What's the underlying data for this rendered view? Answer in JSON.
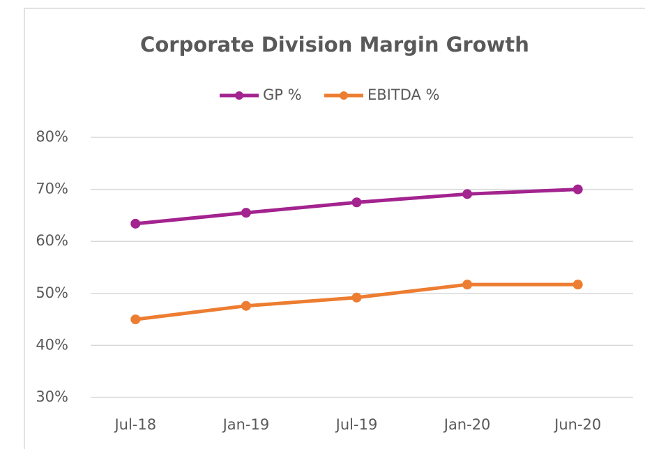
{
  "chart_data": {
    "type": "line",
    "title": "Corporate Division Margin Growth",
    "categories": [
      "Jul-18",
      "Jan-19",
      "Jul-19",
      "Jan-20",
      "Jun-20"
    ],
    "series": [
      {
        "name": "GP %",
        "color": "#a3238f",
        "values": [
          63.4,
          65.5,
          67.5,
          69.1,
          70.0
        ]
      },
      {
        "name": "EBITDA %",
        "color": "#ed7d31",
        "values": [
          45.0,
          47.6,
          49.2,
          51.7,
          51.7
        ]
      }
    ],
    "ylim": [
      30,
      80
    ],
    "yticks": [
      {
        "value": 30,
        "label": "30%"
      },
      {
        "value": 40,
        "label": "40%"
      },
      {
        "value": 50,
        "label": "50%"
      },
      {
        "value": 60,
        "label": "60%"
      },
      {
        "value": 70,
        "label": "70%"
      },
      {
        "value": 80,
        "label": "80%"
      }
    ],
    "grid": true,
    "legend": "top"
  }
}
